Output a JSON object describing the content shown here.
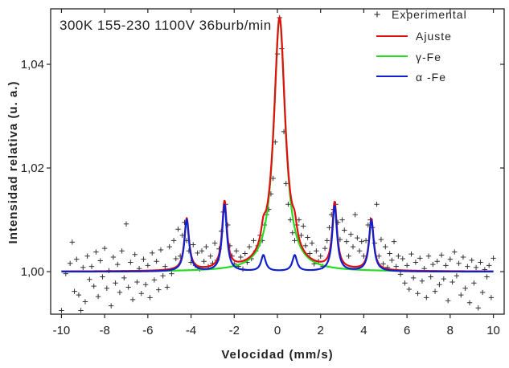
{
  "chart_data": {
    "type": "line",
    "title": "",
    "annotation": "300K 155-230 1100V 36burb/min",
    "xlabel": "Velocidad (mm/s)",
    "ylabel": "Intensidad relativa (u. a.)",
    "xlim": [
      -10.5,
      10.5
    ],
    "ylim": [
      0.9918,
      1.0507
    ],
    "x_ticks": [
      -10,
      -8,
      -6,
      -4,
      -2,
      0,
      2,
      4,
      6,
      8,
      10
    ],
    "y_ticks": [
      1.0,
      1.02,
      1.04
    ],
    "y_tick_labels": [
      "1,00",
      "1,02",
      "1,04"
    ],
    "legend_position": "top-right",
    "grid": false,
    "series": [
      {
        "name": "Experimental",
        "style": "markers",
        "color": "#333333",
        "points": [
          [
            -10.0,
            0.9925
          ],
          [
            -9.8,
            0.9996
          ],
          [
            -9.6,
            1.0016
          ],
          [
            -9.5,
            1.0057
          ],
          [
            -9.4,
            0.9962
          ],
          [
            -9.3,
            1.0024
          ],
          [
            -9.2,
            0.9955
          ],
          [
            -9.1,
            0.9925
          ],
          [
            -9.0,
            1.0008
          ],
          [
            -8.9,
            0.9942
          ],
          [
            -8.8,
            1.003
          ],
          [
            -8.7,
            0.9985
          ],
          [
            -8.6,
            1.001
          ],
          [
            -8.5,
            0.9972
          ],
          [
            -8.4,
            1.0038
          ],
          [
            -8.3,
            0.9952
          ],
          [
            -8.2,
            1.0021
          ],
          [
            -8.1,
            0.999
          ],
          [
            -8.0,
            1.0045
          ],
          [
            -7.9,
            0.9968
          ],
          [
            -7.8,
            1.0002
          ],
          [
            -7.7,
            0.9934
          ],
          [
            -7.6,
            1.0028
          ],
          [
            -7.5,
            0.9978
          ],
          [
            -7.4,
            1.0014
          ],
          [
            -7.3,
            0.996
          ],
          [
            -7.2,
            1.004
          ],
          [
            -7.1,
            0.9988
          ],
          [
            -7.0,
            1.0092
          ],
          [
            -6.9,
            0.997
          ],
          [
            -6.8,
            1.0018
          ],
          [
            -6.7,
            0.9946
          ],
          [
            -6.6,
            1.0033
          ],
          [
            -6.5,
            0.998
          ],
          [
            -6.4,
            1.0006
          ],
          [
            -6.3,
            0.9958
          ],
          [
            -6.2,
            1.0024
          ],
          [
            -6.1,
            0.9975
          ],
          [
            -6.0,
            1.0012
          ],
          [
            -5.9,
            0.995
          ],
          [
            -5.8,
            1.0036
          ],
          [
            -5.7,
            0.9984
          ],
          [
            -5.6,
            1.002
          ],
          [
            -5.5,
            0.9965
          ],
          [
            -5.4,
            1.0042
          ],
          [
            -5.3,
            0.9992
          ],
          [
            -5.2,
            1.001
          ],
          [
            -5.1,
            0.997
          ],
          [
            -5.0,
            1.0048
          ],
          [
            -4.9,
            0.9996
          ],
          [
            -4.8,
            1.006
          ],
          [
            -4.7,
            1.0025
          ],
          [
            -4.6,
            1.0082
          ],
          [
            -4.5,
            1.003
          ],
          [
            -4.4,
            1.007
          ],
          [
            -4.3,
            1.0095
          ],
          [
            -4.2,
            1.006
          ],
          [
            -4.1,
            1.004
          ],
          [
            -4.0,
            1.0018
          ],
          [
            -3.9,
            1.0052
          ],
          [
            -3.8,
            1.0012
          ],
          [
            -3.7,
            1.0036
          ],
          [
            -3.6,
            1.0005
          ],
          [
            -3.5,
            1.004
          ],
          [
            -3.4,
            1.002
          ],
          [
            -3.3,
            1.0048
          ],
          [
            -3.2,
            1.001
          ],
          [
            -3.1,
            1.003
          ],
          [
            -3.0,
            1.0016
          ],
          [
            -2.9,
            1.0055
          ],
          [
            -2.8,
            1.0022
          ],
          [
            -2.7,
            1.0044
          ],
          [
            -2.6,
            1.0078
          ],
          [
            -2.5,
            1.0115
          ],
          [
            -2.4,
            1.013
          ],
          [
            -2.3,
            1.009
          ],
          [
            -2.2,
            1.005
          ],
          [
            -2.1,
            1.003
          ],
          [
            -2.0,
            1.0015
          ],
          [
            -1.9,
            1.004
          ],
          [
            -1.8,
            1.001
          ],
          [
            -1.7,
            1.0028
          ],
          [
            -1.6,
            1.0005
          ],
          [
            -1.5,
            1.0035
          ],
          [
            -1.4,
            1.0018
          ],
          [
            -1.3,
            1.0048
          ],
          [
            -1.2,
            1.0025
          ],
          [
            -1.1,
            1.006
          ],
          [
            -1.0,
            1.004
          ],
          [
            -0.9,
            1.005
          ],
          [
            -0.8,
            1.007
          ],
          [
            -0.7,
            1.006
          ],
          [
            -0.6,
            1.009
          ],
          [
            -0.5,
            1.011
          ],
          [
            -0.4,
            1.012
          ],
          [
            -0.3,
            1.015
          ],
          [
            -0.2,
            1.018
          ],
          [
            -0.1,
            1.025
          ],
          [
            0.0,
            1.042
          ],
          [
            0.1,
            1.049
          ],
          [
            0.2,
            1.043
          ],
          [
            0.3,
            1.027
          ],
          [
            0.4,
            1.017
          ],
          [
            0.5,
            1.013
          ],
          [
            0.6,
            1.01
          ],
          [
            0.7,
            1.0075
          ],
          [
            0.8,
            1.006
          ],
          [
            0.9,
            1.009
          ],
          [
            1.0,
            1.01
          ],
          [
            1.1,
            1.007
          ],
          [
            1.2,
            1.0088
          ],
          [
            1.3,
            1.005
          ],
          [
            1.4,
            1.0066
          ],
          [
            1.5,
            1.0035
          ],
          [
            1.6,
            1.0055
          ],
          [
            1.7,
            1.0015
          ],
          [
            1.8,
            1.004
          ],
          [
            1.9,
            1.002
          ],
          [
            2.0,
            1.003
          ],
          [
            2.1,
            1.001
          ],
          [
            2.2,
            1.0045
          ],
          [
            2.3,
            1.006
          ],
          [
            2.4,
            1.0085
          ],
          [
            2.5,
            1.011
          ],
          [
            2.6,
            1.012
          ],
          [
            2.7,
            1.013
          ],
          [
            2.8,
            1.0095
          ],
          [
            2.9,
            1.0062
          ],
          [
            3.0,
            1.01
          ],
          [
            3.1,
            1.008
          ],
          [
            3.2,
            1.0058
          ],
          [
            3.3,
            1.003
          ],
          [
            3.4,
            1.0072
          ],
          [
            3.5,
            1.0048
          ],
          [
            3.6,
            1.011
          ],
          [
            3.7,
            1.0065
          ],
          [
            3.8,
            1.004
          ],
          [
            3.9,
            1.0058
          ],
          [
            4.0,
            1.003
          ],
          [
            4.1,
            1.006
          ],
          [
            4.2,
            1.009
          ],
          [
            4.3,
            1.01
          ],
          [
            4.4,
            1.0085
          ],
          [
            4.5,
            1.0055
          ],
          [
            4.6,
            1.013
          ],
          [
            4.7,
            1.003
          ],
          [
            4.8,
            1.0062
          ],
          [
            4.9,
            1.0015
          ],
          [
            5.0,
            1.0048
          ],
          [
            5.1,
            1.0008
          ],
          [
            5.2,
            1.0035
          ],
          [
            5.3,
            1.0022
          ],
          [
            5.4,
            1.0058
          ],
          [
            5.5,
            1.001
          ],
          [
            5.6,
            1.003
          ],
          [
            5.7,
            0.9995
          ],
          [
            5.8,
            1.0025
          ],
          [
            5.9,
            0.9978
          ],
          [
            6.0,
            1.0012
          ],
          [
            6.1,
            0.9966
          ],
          [
            6.2,
            1.0034
          ],
          [
            6.3,
            0.9988
          ],
          [
            6.4,
            1.0018
          ],
          [
            6.5,
            0.9958
          ],
          [
            6.6,
            1.0026
          ],
          [
            6.7,
            0.9982
          ],
          [
            6.8,
            1.0006
          ],
          [
            6.9,
            0.995
          ],
          [
            7.0,
            1.003
          ],
          [
            7.1,
            0.999
          ],
          [
            7.2,
            1.0014
          ],
          [
            7.3,
            0.9962
          ],
          [
            7.4,
            1.002
          ],
          [
            7.5,
            0.9975
          ],
          [
            7.6,
            1.0032
          ],
          [
            7.7,
            0.9986
          ],
          [
            7.8,
            1.0012
          ],
          [
            7.9,
            0.9944
          ],
          [
            8.0,
            1.0024
          ],
          [
            8.1,
            0.998
          ],
          [
            8.2,
            1.0038
          ],
          [
            8.3,
            0.9992
          ],
          [
            8.4,
            1.0016
          ],
          [
            8.5,
            0.9955
          ],
          [
            8.6,
            1.0028
          ],
          [
            8.7,
            0.9968
          ],
          [
            8.8,
            1.001
          ],
          [
            8.9,
            0.994
          ],
          [
            9.0,
            1.0022
          ],
          [
            9.1,
            0.9978
          ],
          [
            9.2,
            1.0008
          ],
          [
            9.3,
            0.993
          ],
          [
            9.4,
            1.0018
          ],
          [
            9.5,
            0.996
          ],
          [
            9.6,
            1.0004
          ],
          [
            9.7,
            0.999
          ],
          [
            9.8,
            1.0012
          ],
          [
            9.9,
            0.995
          ],
          [
            10.0,
            1.0026
          ]
        ]
      },
      {
        "name": "Ajuste",
        "style": "line",
        "color": "#e01010",
        "lorentzians": [
          {
            "x0": -4.2,
            "gamma": 0.13,
            "amp": 0.01
          },
          {
            "x0": -2.45,
            "gamma": 0.13,
            "amp": 0.0129
          },
          {
            "x0": -0.65,
            "gamma": 0.13,
            "amp": 0.0031
          },
          {
            "x0": 0.1,
            "gamma": 0.32,
            "amp": 0.0488
          },
          {
            "x0": 0.8,
            "gamma": 0.13,
            "amp": 0.0031
          },
          {
            "x0": 2.65,
            "gamma": 0.13,
            "amp": 0.0127
          },
          {
            "x0": 4.35,
            "gamma": 0.13,
            "amp": 0.0099
          }
        ]
      },
      {
        "name": "γ-Fe",
        "style": "line",
        "color": "#22dd22",
        "lorentzians": [
          {
            "x0": 0.1,
            "gamma": 0.32,
            "amp": 0.0488
          }
        ]
      },
      {
        "name": "α -Fe",
        "style": "line",
        "color": "#1020cc",
        "lorentzians": [
          {
            "x0": -4.2,
            "gamma": 0.13,
            "amp": 0.01
          },
          {
            "x0": -2.45,
            "gamma": 0.13,
            "amp": 0.0129
          },
          {
            "x0": -0.65,
            "gamma": 0.13,
            "amp": 0.0031
          },
          {
            "x0": 0.8,
            "gamma": 0.13,
            "amp": 0.0031
          },
          {
            "x0": 2.65,
            "gamma": 0.13,
            "amp": 0.0127
          },
          {
            "x0": 4.35,
            "gamma": 0.13,
            "amp": 0.0099
          }
        ]
      }
    ]
  }
}
